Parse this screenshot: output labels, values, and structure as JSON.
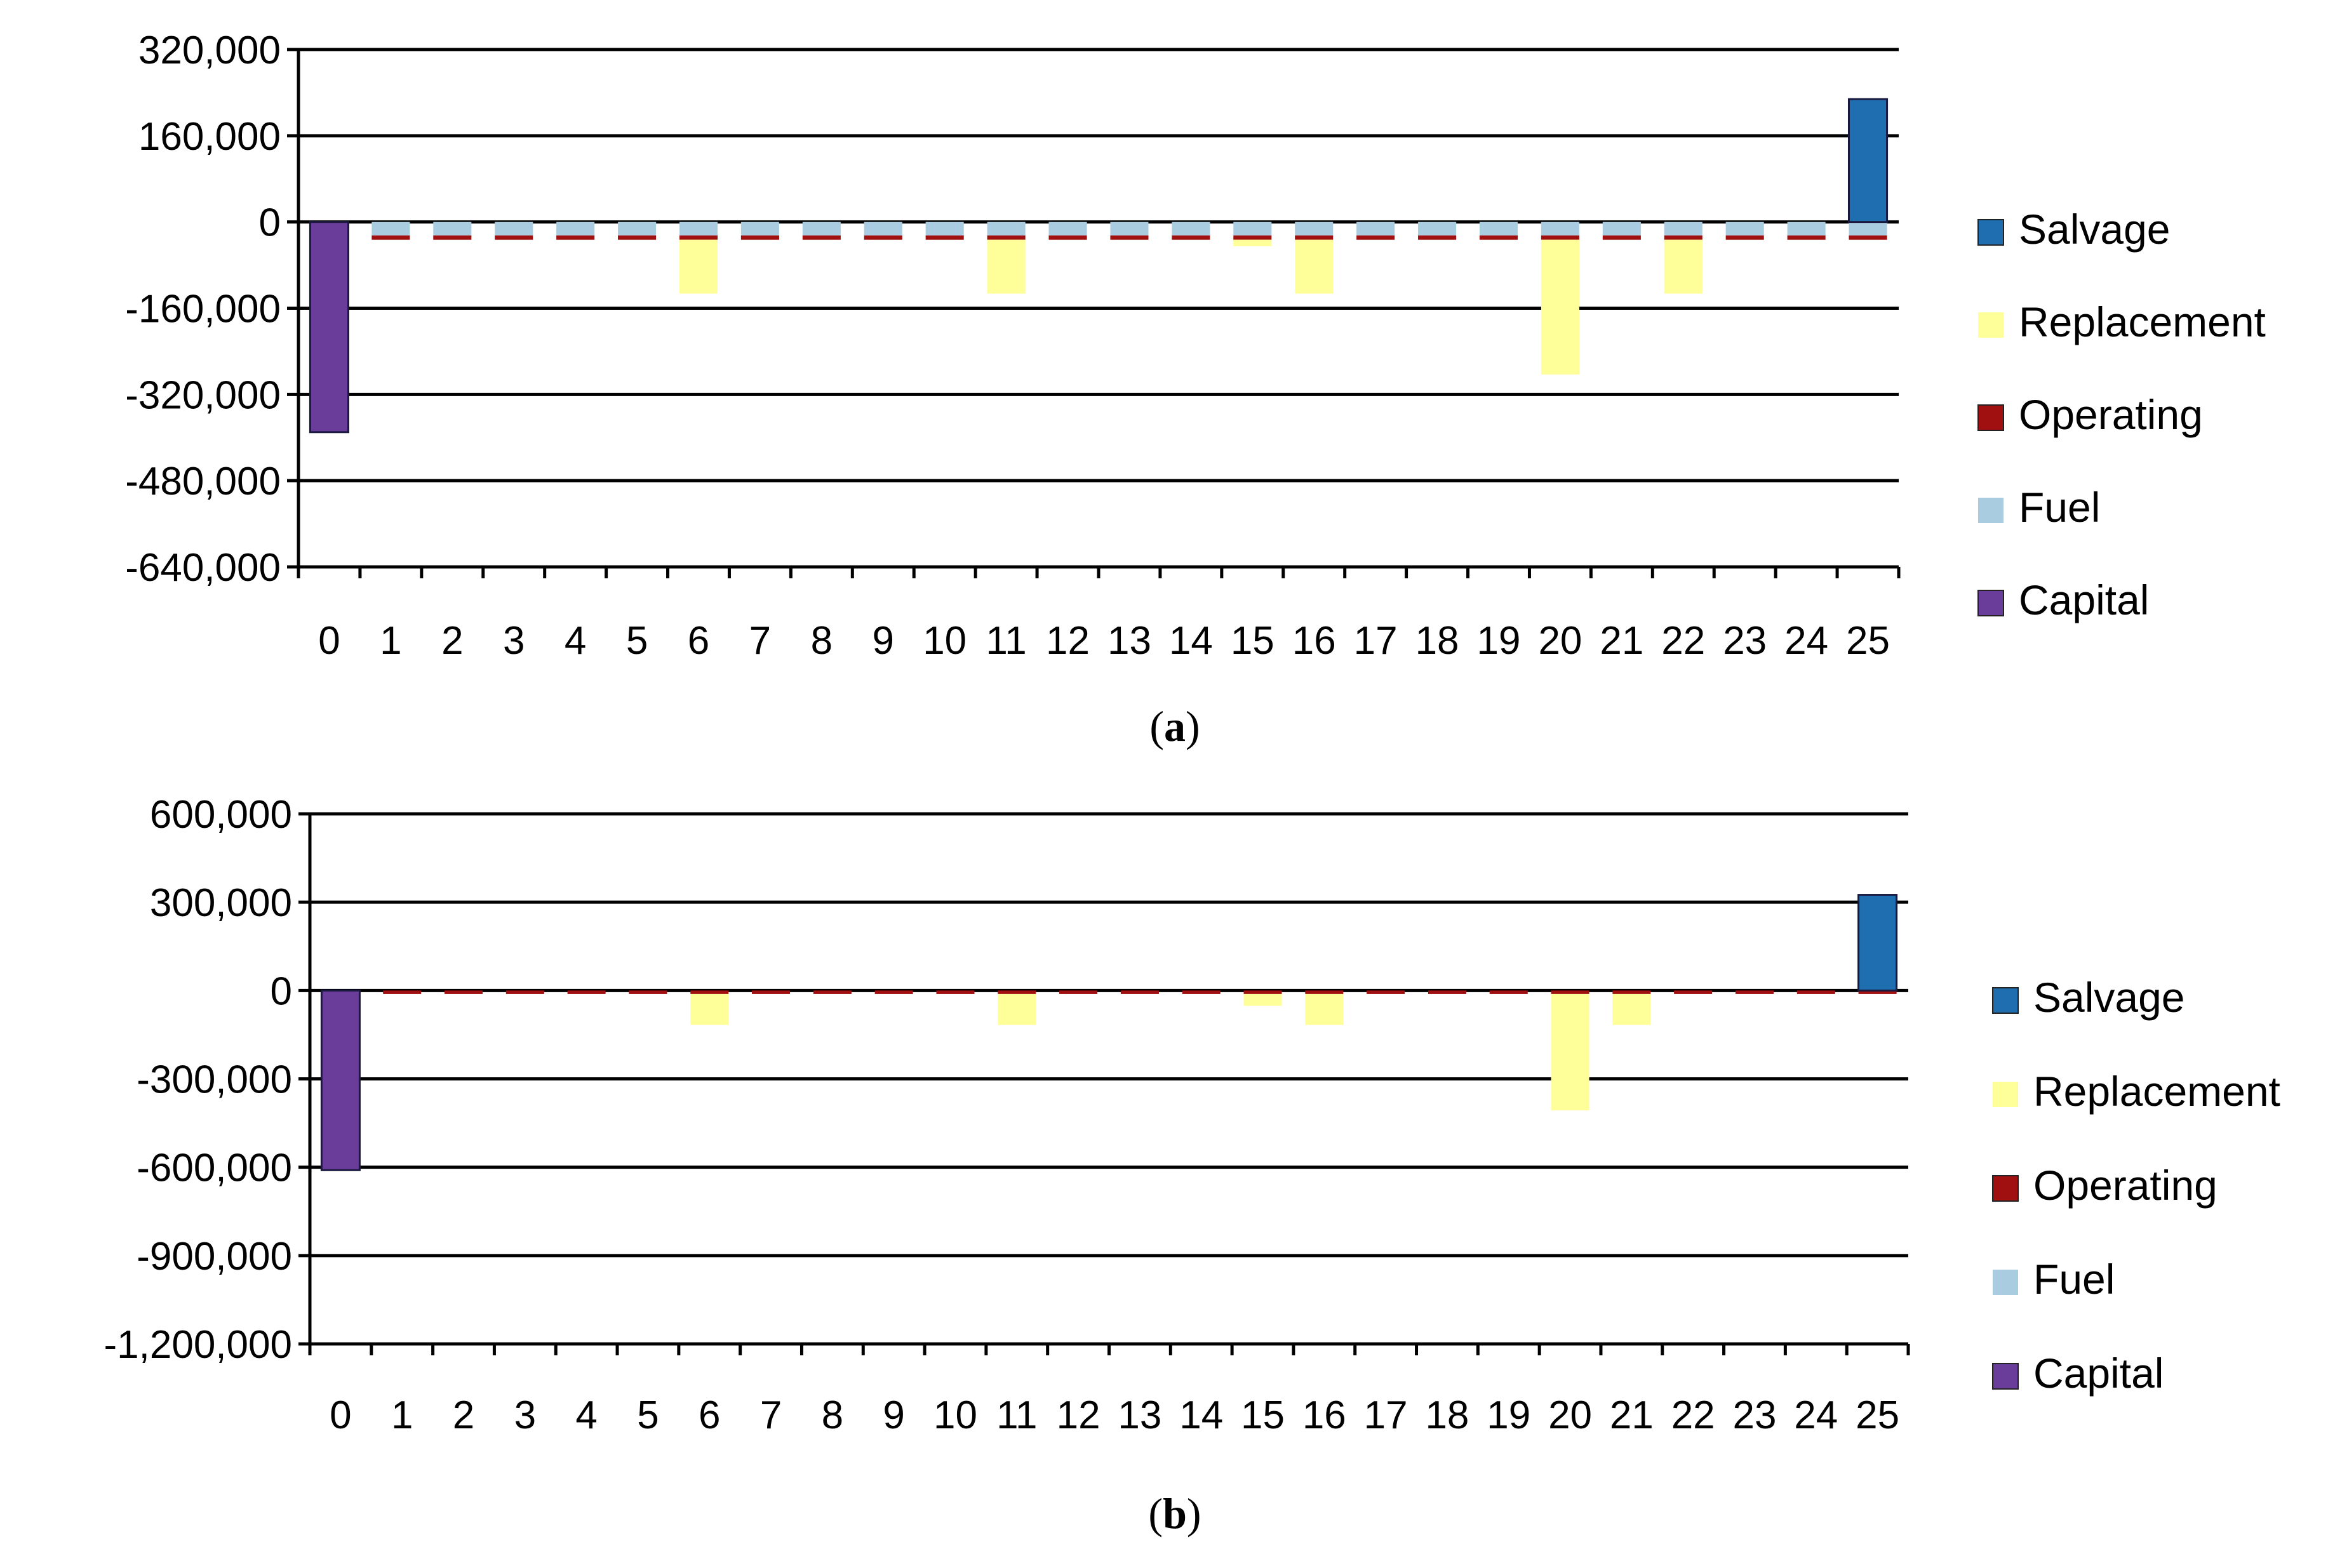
{
  "chart_data": [
    {
      "type": "bar",
      "panel": "a",
      "categories": [
        "0",
        "1",
        "2",
        "3",
        "4",
        "5",
        "6",
        "7",
        "8",
        "9",
        "10",
        "11",
        "12",
        "13",
        "14",
        "15",
        "16",
        "17",
        "18",
        "19",
        "20",
        "21",
        "22",
        "23",
        "24",
        "25"
      ],
      "ylim": [
        -640000,
        320000
      ],
      "yticks": [
        320000,
        160000,
        0,
        -160000,
        -320000,
        -480000,
        -640000
      ],
      "ytick_labels": [
        "320,000",
        "160,000",
        "0",
        "-160,000",
        "-320,000",
        "-480,000",
        "-640,000"
      ],
      "grid": true,
      "legend_position": "right",
      "stacked": true,
      "series": [
        {
          "name": "Salvage",
          "color": "#1f6fb0",
          "values": [
            0,
            0,
            0,
            0,
            0,
            0,
            0,
            0,
            0,
            0,
            0,
            0,
            0,
            0,
            0,
            0,
            0,
            0,
            0,
            0,
            0,
            0,
            0,
            0,
            0,
            228000
          ]
        },
        {
          "name": "Replacement",
          "color": "#ffff99",
          "values": [
            0,
            0,
            0,
            0,
            0,
            0,
            -100000,
            0,
            0,
            0,
            0,
            -100000,
            0,
            0,
            0,
            -12000,
            -100000,
            0,
            0,
            0,
            -250000,
            0,
            -100000,
            0,
            0,
            0
          ]
        },
        {
          "name": "Operating",
          "color": "#a01010",
          "values": [
            0,
            -8000,
            -8000,
            -8000,
            -8000,
            -8000,
            -8000,
            -8000,
            -8000,
            -8000,
            -8000,
            -8000,
            -8000,
            -8000,
            -8000,
            -8000,
            -8000,
            -8000,
            -8000,
            -8000,
            -8000,
            -8000,
            -8000,
            -8000,
            -8000,
            -8000
          ]
        },
        {
          "name": "Fuel",
          "color": "#a9cce0",
          "values": [
            0,
            -25000,
            -25000,
            -25000,
            -25000,
            -25000,
            -25000,
            -25000,
            -25000,
            -25000,
            -25000,
            -25000,
            -25000,
            -25000,
            -25000,
            -25000,
            -25000,
            -25000,
            -25000,
            -25000,
            -25000,
            -25000,
            -25000,
            -25000,
            -25000,
            -25000
          ]
        },
        {
          "name": "Capital",
          "color": "#6a3d9a",
          "values": [
            -390000,
            0,
            0,
            0,
            0,
            0,
            0,
            0,
            0,
            0,
            0,
            0,
            0,
            0,
            0,
            0,
            0,
            0,
            0,
            0,
            0,
            0,
            0,
            0,
            0,
            0
          ]
        }
      ]
    },
    {
      "type": "bar",
      "panel": "b",
      "categories": [
        "0",
        "1",
        "2",
        "3",
        "4",
        "5",
        "6",
        "7",
        "8",
        "9",
        "10",
        "11",
        "12",
        "13",
        "14",
        "15",
        "16",
        "17",
        "18",
        "19",
        "20",
        "21",
        "22",
        "23",
        "24",
        "25"
      ],
      "ylim": [
        -1200000,
        600000
      ],
      "yticks": [
        600000,
        300000,
        0,
        -300000,
        -600000,
        -900000,
        -1200000
      ],
      "ytick_labels": [
        "600,000",
        "300,000",
        "0",
        "-300,000",
        "-600,000",
        "-900,000",
        "-1,200,000"
      ],
      "grid": true,
      "legend_position": "right",
      "stacked": true,
      "series": [
        {
          "name": "Salvage",
          "color": "#1f6fb0",
          "values": [
            0,
            0,
            0,
            0,
            0,
            0,
            0,
            0,
            0,
            0,
            0,
            0,
            0,
            0,
            0,
            0,
            0,
            0,
            0,
            0,
            0,
            0,
            0,
            0,
            0,
            325000
          ]
        },
        {
          "name": "Replacement",
          "color": "#ffff99",
          "values": [
            0,
            0,
            0,
            0,
            0,
            0,
            -105000,
            0,
            0,
            0,
            0,
            -105000,
            0,
            0,
            0,
            -40000,
            -105000,
            0,
            0,
            0,
            -395000,
            -105000,
            0,
            0,
            0,
            0
          ]
        },
        {
          "name": "Operating",
          "color": "#a01010",
          "values": [
            0,
            -12000,
            -12000,
            -12000,
            -12000,
            -12000,
            -12000,
            -12000,
            -12000,
            -12000,
            -12000,
            -12000,
            -12000,
            -12000,
            -12000,
            -12000,
            -12000,
            -12000,
            -12000,
            -12000,
            -12000,
            -12000,
            -12000,
            -12000,
            -12000,
            -12000
          ]
        },
        {
          "name": "Fuel",
          "color": "#a9cce0",
          "values": [
            0,
            0,
            0,
            0,
            0,
            0,
            0,
            0,
            0,
            0,
            0,
            0,
            0,
            0,
            0,
            0,
            0,
            0,
            0,
            0,
            0,
            0,
            0,
            0,
            0,
            0
          ]
        },
        {
          "name": "Capital",
          "color": "#6a3d9a",
          "values": [
            -610000,
            0,
            0,
            0,
            0,
            0,
            0,
            0,
            0,
            0,
            0,
            0,
            0,
            0,
            0,
            0,
            0,
            0,
            0,
            0,
            0,
            0,
            0,
            0,
            0,
            0
          ]
        }
      ]
    }
  ],
  "labels": {
    "panel_a": "a",
    "panel_b": "b"
  }
}
